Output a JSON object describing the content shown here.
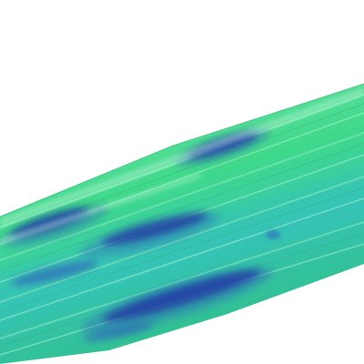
{
  "image": {
    "subject": "leaf-blade-closeup",
    "colors": {
      "background": "#ffffff",
      "leaf_base": "#3fd98a",
      "leaf_light": "#6fe3a6",
      "leaf_teal": "#36c4b6",
      "lesion_dark": "#1c2f96",
      "lesion_mid": "#2e57c0",
      "vein_highlight": "#a8f2cd"
    }
  }
}
